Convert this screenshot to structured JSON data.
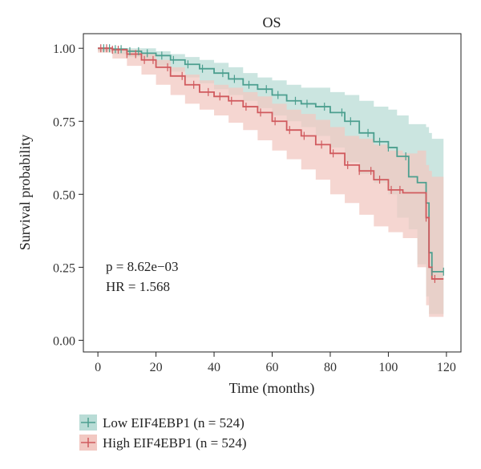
{
  "chart_data": {
    "type": "line",
    "title": "OS",
    "xlabel": "Time (months)",
    "ylabel": "Survival probability",
    "xlim": [
      -5,
      125
    ],
    "ylim": [
      -0.04,
      1.05
    ],
    "x_ticks": [
      "0",
      "20",
      "40",
      "60",
      "80",
      "100",
      "120"
    ],
    "y_ticks": [
      "0.00",
      "0.25",
      "0.50",
      "0.75",
      "1.00"
    ],
    "annotations": {
      "p_value": "p = 8.62e−03",
      "hr": "HR = 1.568"
    },
    "legend_position": "bottom-left",
    "series": [
      {
        "name": "Low EIF4EBP1 (n = 524)",
        "color": "#4c9f8f",
        "band_color": "#b9dcd6",
        "x": [
          0,
          5,
          10,
          15,
          20,
          25,
          30,
          35,
          40,
          45,
          50,
          55,
          60,
          65,
          70,
          75,
          80,
          85,
          90,
          95,
          100,
          103,
          107,
          110,
          113,
          114,
          115,
          119
        ],
        "y": [
          1.0,
          0.997,
          0.99,
          0.983,
          0.975,
          0.96,
          0.945,
          0.93,
          0.915,
          0.895,
          0.875,
          0.86,
          0.84,
          0.82,
          0.81,
          0.8,
          0.78,
          0.75,
          0.71,
          0.68,
          0.66,
          0.63,
          0.56,
          0.54,
          0.47,
          0.3,
          0.235,
          0.235
        ],
        "lower": [
          1.0,
          0.99,
          0.98,
          0.97,
          0.96,
          0.94,
          0.92,
          0.9,
          0.88,
          0.86,
          0.84,
          0.82,
          0.795,
          0.77,
          0.75,
          0.73,
          0.7,
          0.66,
          0.61,
          0.57,
          0.54,
          0.5,
          0.42,
          0.38,
          0.26,
          0.15,
          0.09,
          0.09
        ],
        "upper": [
          1.0,
          1.0,
          1.0,
          1.0,
          0.99,
          0.98,
          0.97,
          0.96,
          0.95,
          0.935,
          0.915,
          0.9,
          0.89,
          0.875,
          0.865,
          0.865,
          0.85,
          0.84,
          0.82,
          0.8,
          0.79,
          0.77,
          0.74,
          0.74,
          0.73,
          0.71,
          0.69,
          0.69
        ],
        "censored": [
          2,
          4,
          6,
          8,
          11,
          14,
          17,
          22,
          26,
          31,
          36,
          43,
          47,
          52,
          58,
          62,
          68,
          72,
          78,
          84,
          87,
          93,
          97,
          100,
          106,
          115,
          119
        ]
      },
      {
        "name": "High EIF4EBP1 (n = 524)",
        "color": "#d05a5e",
        "band_color": "#f2c8c2",
        "x": [
          0,
          5,
          10,
          15,
          20,
          25,
          30,
          35,
          40,
          45,
          50,
          55,
          60,
          65,
          70,
          75,
          80,
          85,
          90,
          95,
          100,
          105,
          110,
          113,
          114,
          115,
          119
        ],
        "y": [
          1.0,
          0.995,
          0.98,
          0.96,
          0.935,
          0.905,
          0.875,
          0.85,
          0.835,
          0.82,
          0.8,
          0.78,
          0.75,
          0.72,
          0.7,
          0.67,
          0.64,
          0.6,
          0.58,
          0.55,
          0.515,
          0.505,
          0.505,
          0.42,
          0.25,
          0.21,
          0.21
        ],
        "lower": [
          1.0,
          0.985,
          0.965,
          0.94,
          0.91,
          0.875,
          0.84,
          0.81,
          0.79,
          0.77,
          0.745,
          0.72,
          0.685,
          0.65,
          0.62,
          0.585,
          0.55,
          0.5,
          0.47,
          0.43,
          0.39,
          0.37,
          0.35,
          0.25,
          0.12,
          0.08,
          0.08
        ],
        "upper": [
          1.0,
          1.0,
          0.995,
          0.98,
          0.96,
          0.935,
          0.91,
          0.89,
          0.875,
          0.865,
          0.85,
          0.835,
          0.81,
          0.79,
          0.775,
          0.755,
          0.73,
          0.7,
          0.69,
          0.67,
          0.65,
          0.64,
          0.65,
          0.6,
          0.58,
          0.56,
          0.56
        ],
        "censored": [
          1,
          3,
          5,
          7,
          10,
          13,
          16,
          19,
          24,
          29,
          33,
          38,
          42,
          46,
          51,
          56,
          61,
          66,
          71,
          77,
          81,
          86,
          90,
          94,
          97,
          101,
          104,
          113,
          116
        ]
      }
    ]
  }
}
